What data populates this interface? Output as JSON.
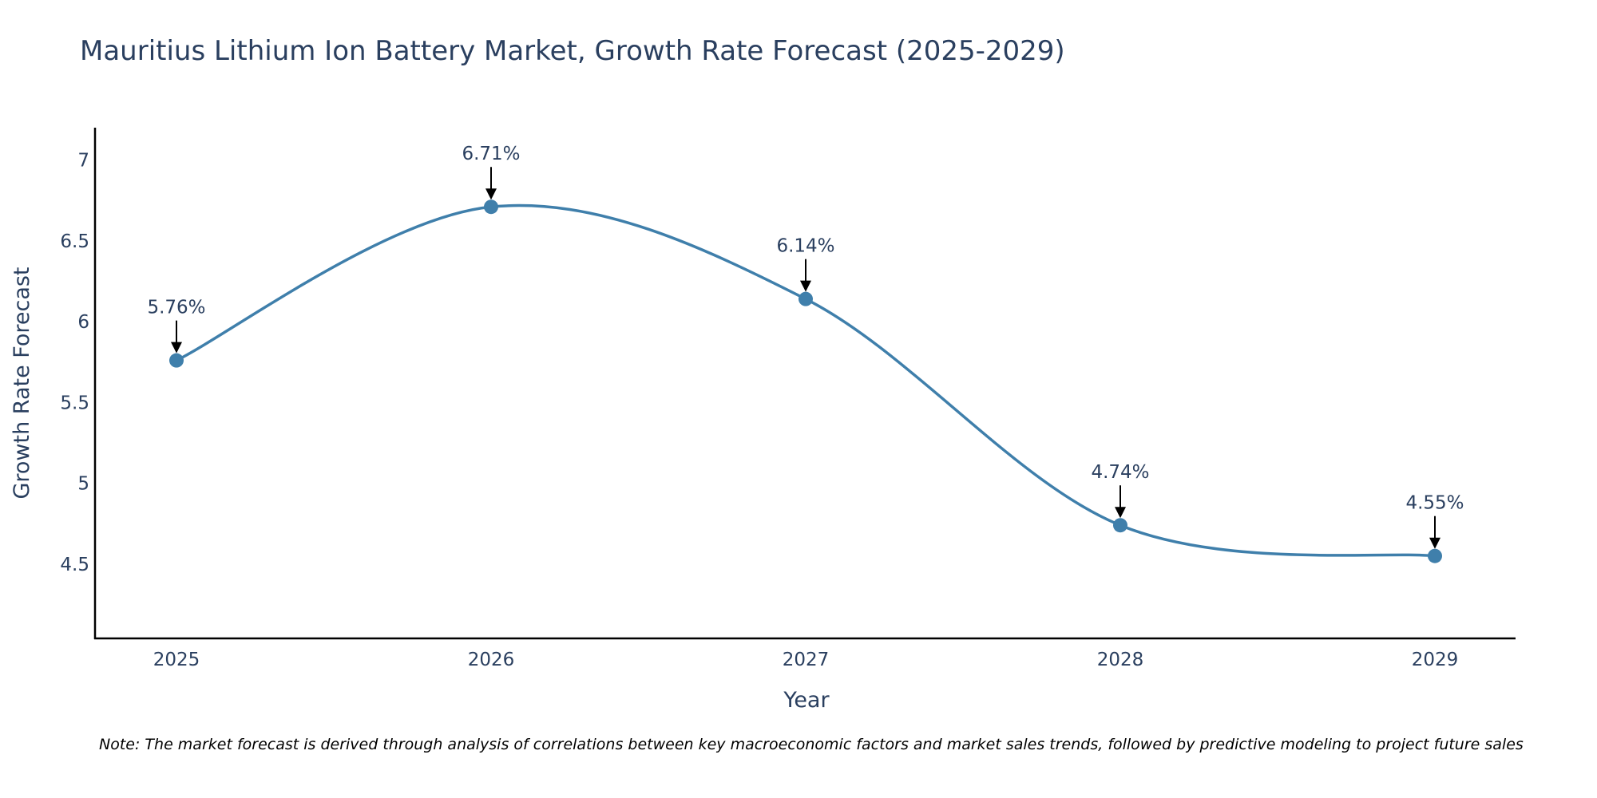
{
  "title": "Mauritius Lithium Ion Battery Market, Growth Rate Forecast (2025-2029)",
  "note": "Note: The market forecast is derived through analysis of correlations between key macroeconomic factors and market sales trends, followed by predictive modeling to project future sales",
  "colors": {
    "line": "#3f7fab",
    "marker": "#3f7fab",
    "text": "#2a3f5f",
    "axis": "#000000",
    "arrow": "#000000"
  },
  "chart_data": {
    "type": "line",
    "title": "Mauritius Lithium Ion Battery Market, Growth Rate Forecast (2025-2029)",
    "xlabel": "Year",
    "ylabel": "Growth Rate Forecast",
    "x": [
      "2025",
      "2026",
      "2027",
      "2028",
      "2029"
    ],
    "series": [
      {
        "name": "Growth Rate Forecast",
        "values": [
          5.76,
          6.71,
          6.14,
          4.74,
          4.55
        ]
      }
    ],
    "data_labels": [
      "5.76%",
      "6.71%",
      "6.14%",
      "4.74%",
      "4.55%"
    ],
    "yticks": [
      4.5,
      5,
      5.5,
      6,
      6.5,
      7
    ],
    "ytick_labels": [
      "4.5",
      "5",
      "5.5",
      "6",
      "6.5",
      "7"
    ],
    "ylim": [
      4.04,
      7.2
    ],
    "grid": false,
    "line_shape": "spline"
  }
}
